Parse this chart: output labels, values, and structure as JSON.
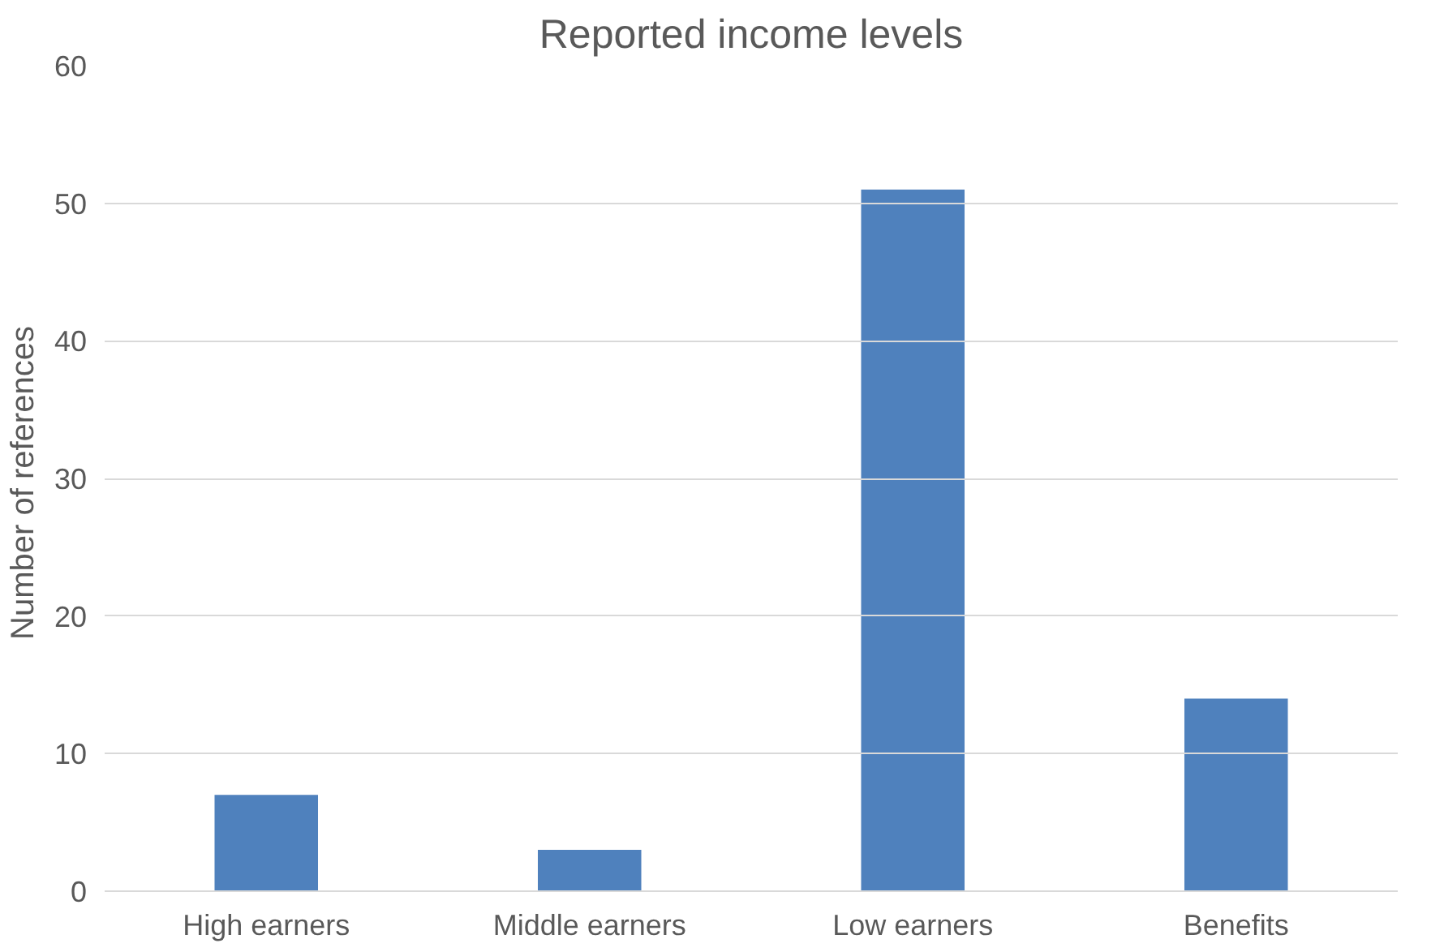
{
  "chart_data": {
    "type": "bar",
    "title": "Reported income levels",
    "ylabel": "Number  of references",
    "categories": [
      "High earners",
      "Middle earners",
      "Low earners",
      "Benefits"
    ],
    "values": [
      7,
      3,
      51,
      14
    ],
    "color": "#4f81bd",
    "ylim": [
      0,
      60
    ],
    "yticks": [
      0,
      10,
      20,
      30,
      40,
      50,
      60
    ],
    "grid": "y"
  }
}
